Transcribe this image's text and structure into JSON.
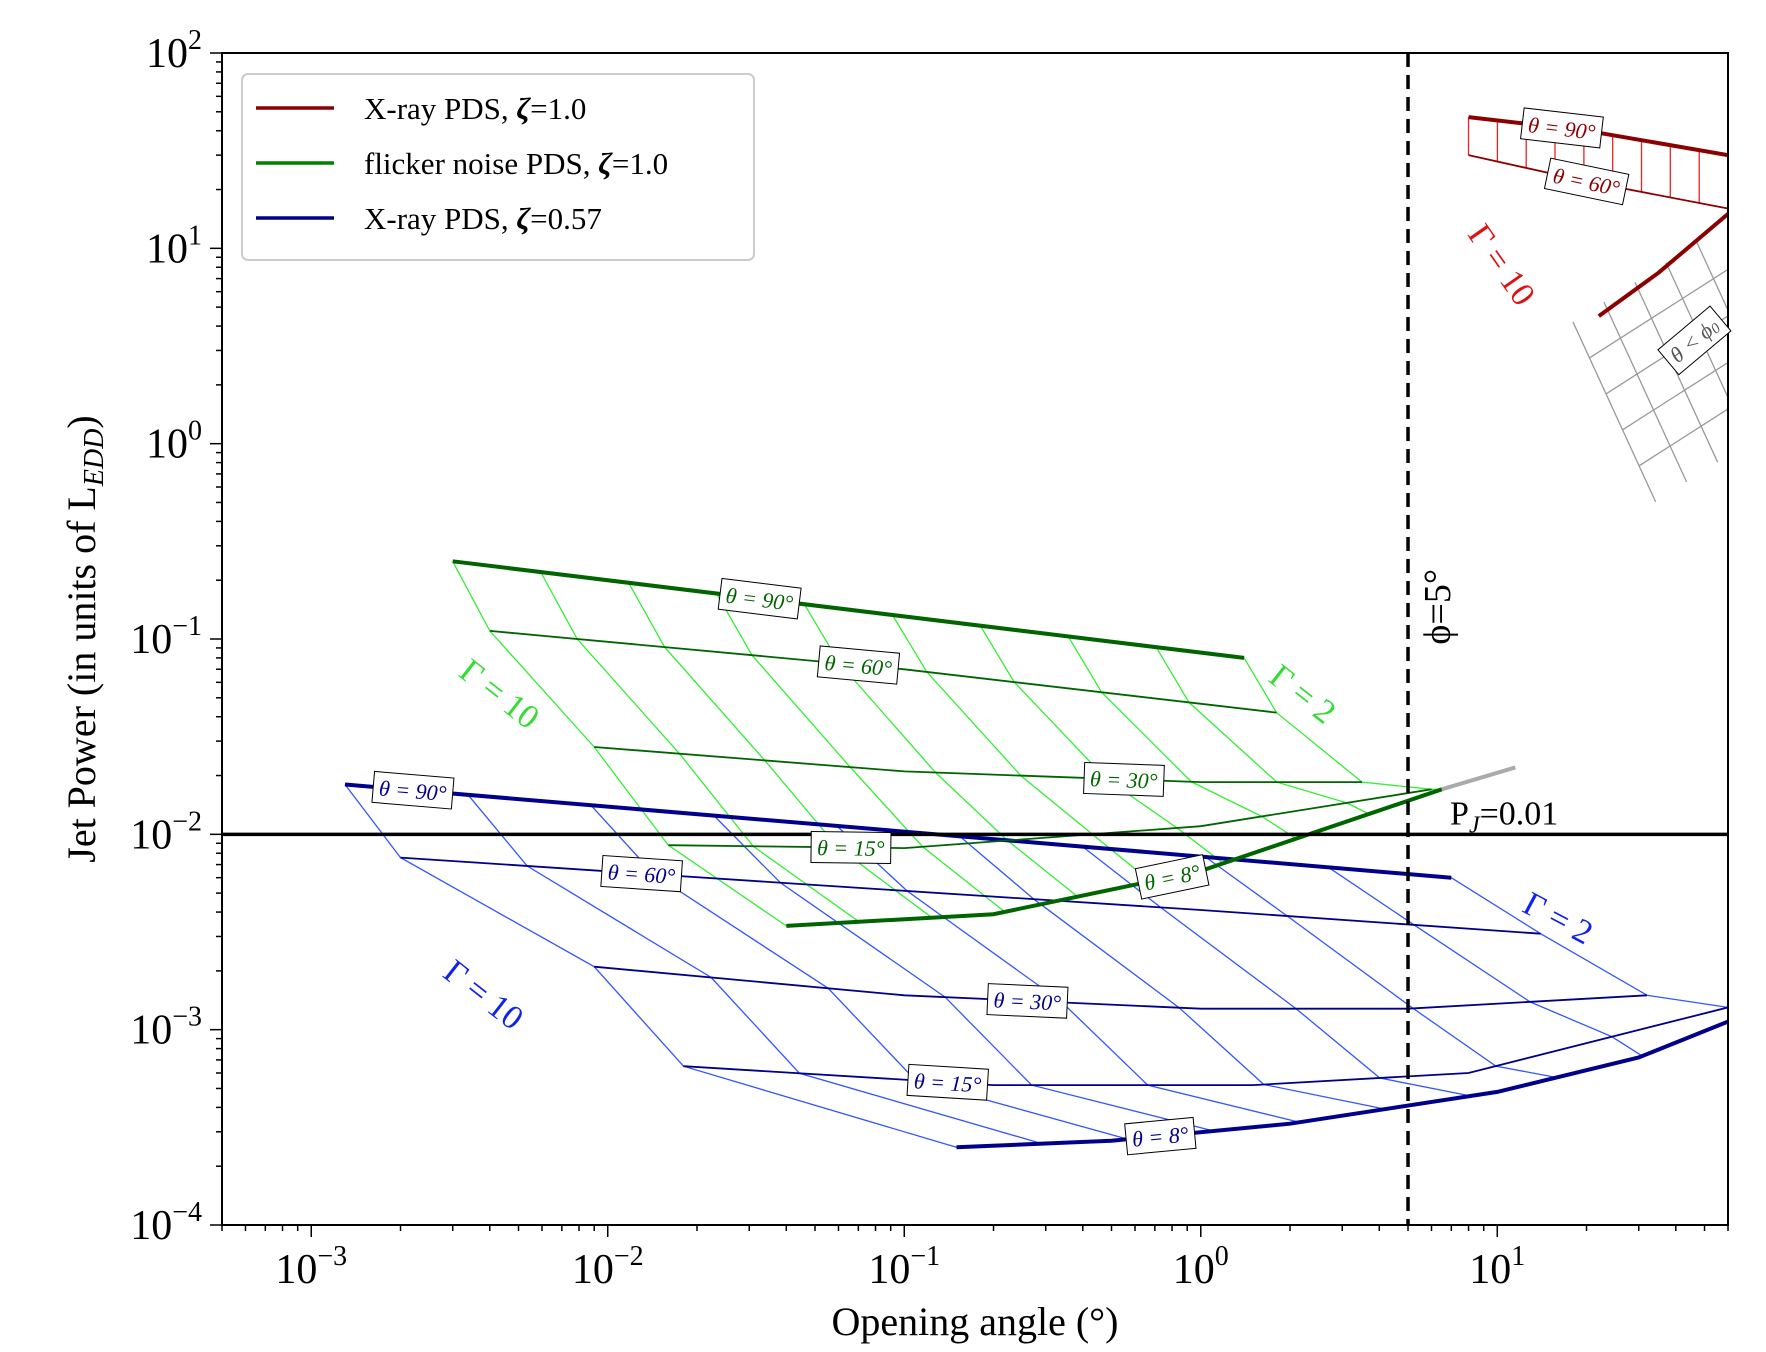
{
  "chart_data": {
    "type": "line",
    "xscale": "log",
    "yscale": "log",
    "xlim": [
      0.0005,
      60
    ],
    "ylim": [
      0.0001,
      100
    ],
    "xlabel": "Opening angle (°)",
    "ylabel": "Jet Power (in units of L",
    "ylabel_sub": "EDD",
    "ylabel_close": ")",
    "x_ticks": [
      {
        "value": 0.001,
        "base": "10",
        "exp": "−3"
      },
      {
        "value": 0.01,
        "base": "10",
        "exp": "−2"
      },
      {
        "value": 0.1,
        "base": "10",
        "exp": "−1"
      },
      {
        "value": 1,
        "base": "10",
        "exp": "0"
      },
      {
        "value": 10,
        "base": "10",
        "exp": "1"
      }
    ],
    "y_ticks": [
      {
        "value": 0.0001,
        "base": "10",
        "exp": "−4"
      },
      {
        "value": 0.001,
        "base": "10",
        "exp": "−3"
      },
      {
        "value": 0.01,
        "base": "10",
        "exp": "−2"
      },
      {
        "value": 0.1,
        "base": "10",
        "exp": "−1"
      },
      {
        "value": 1,
        "base": "10",
        "exp": "0"
      },
      {
        "value": 10,
        "base": "10",
        "exp": "1"
      },
      {
        "value": 100,
        "base": "10",
        "exp": "2"
      }
    ],
    "legend": [
      {
        "label": "X-ray PDS, ",
        "zeta": "ζ",
        "value": "=1.0",
        "color": "#8b0000"
      },
      {
        "label": "flicker noise PDS, ",
        "zeta": "ζ",
        "value": "=1.0",
        "color": "#008000"
      },
      {
        "label": "X-ray PDS, ",
        "zeta": "ζ",
        "value": "=0.57",
        "color": "#00008b"
      }
    ],
    "reference_lines": {
      "vertical": {
        "x": 5,
        "label": "ϕ=5°"
      },
      "horizontal": {
        "y": 0.01,
        "label_main": "P",
        "label_sub": "J",
        "label_value": "=0.01"
      }
    },
    "families": [
      {
        "id": "blue",
        "color_dark": "#00008b",
        "color_grid": "#3355ff",
        "theta_lines": [
          {
            "label": "θ = 90°",
            "label_at": 0.0022,
            "bold": true,
            "points": [
              [
                0.0013,
                0.018
              ],
              [
                7,
                0.006
              ]
            ]
          },
          {
            "label": "θ = 60°",
            "label_at": 0.013,
            "bold": false,
            "points": [
              [
                0.002,
                0.0076
              ],
              [
                0.05,
                0.0055
              ],
              [
                1,
                0.0041
              ],
              [
                14,
                0.0031
              ]
            ]
          },
          {
            "label": "θ = 30°",
            "label_at": 0.26,
            "bold": false,
            "points": [
              [
                0.009,
                0.0021
              ],
              [
                0.1,
                0.0015
              ],
              [
                1,
                0.00128
              ],
              [
                5,
                0.00128
              ],
              [
                32,
                0.0015
              ]
            ]
          },
          {
            "label": "θ = 15°",
            "label_at": 0.14,
            "bold": false,
            "points": [
              [
                0.018,
                0.00065
              ],
              [
                0.2,
                0.00052
              ],
              [
                1.5,
                0.00052
              ],
              [
                8,
                0.0006
              ],
              [
                60,
                0.0013
              ]
            ]
          },
          {
            "label": "θ = 8°",
            "label_at": 0.73,
            "bold": true,
            "points": [
              [
                0.15,
                0.00025
              ],
              [
                0.5,
                0.00027
              ],
              [
                2,
                0.00033
              ],
              [
                10,
                0.00048
              ],
              [
                30,
                0.00072
              ],
              [
                60,
                0.0011
              ]
            ]
          }
        ],
        "gamma_labels": [
          {
            "label": "Γ = 10",
            "x": 0.0038,
            "y": 0.0015,
            "angle": 38
          },
          {
            "label": "Γ = 2",
            "x": 16,
            "y": 0.0037,
            "angle": 28
          }
        ]
      },
      {
        "id": "green",
        "color_dark": "#006400",
        "color_grid": "#33ee33",
        "theta_lines": [
          {
            "label": "θ = 90°",
            "label_at": 0.0325,
            "bold": true,
            "points": [
              [
                0.003,
                0.25
              ],
              [
                1.4,
                0.08
              ]
            ]
          },
          {
            "label": "θ = 60°",
            "label_at": 0.07,
            "bold": false,
            "points": [
              [
                0.004,
                0.11
              ],
              [
                0.1,
                0.07
              ],
              [
                1.8,
                0.042
              ]
            ]
          },
          {
            "label": "θ = 30°",
            "label_at": 0.55,
            "bold": false,
            "points": [
              [
                0.009,
                0.028
              ],
              [
                0.1,
                0.021
              ],
              [
                1,
                0.0185
              ],
              [
                3.5,
                0.0185
              ]
            ]
          },
          {
            "label": "θ = 15°",
            "label_at": 0.066,
            "bold": false,
            "points": [
              [
                0.016,
                0.0088
              ],
              [
                0.1,
                0.0085
              ],
              [
                1,
                0.011
              ],
              [
                6,
                0.017
              ]
            ]
          },
          {
            "label": "θ = 8°",
            "label_at": 0.8,
            "bold": true,
            "points": [
              [
                0.04,
                0.0034
              ],
              [
                0.2,
                0.0039
              ],
              [
                1,
                0.0065
              ],
              [
                6.5,
                0.017
              ]
            ]
          }
        ],
        "gamma_labels": [
          {
            "label": "Γ = 10",
            "x": 0.0043,
            "y": 0.052,
            "angle": 38
          },
          {
            "label": "Γ = 2",
            "x": 2.2,
            "y": 0.052,
            "angle": 38
          }
        ],
        "grey_extension": [
          [
            6.5,
            0.017
          ],
          [
            11.5,
            0.022
          ]
        ]
      },
      {
        "id": "red",
        "color_dark": "#8b0000",
        "color_grid": "#ee2222",
        "theta_lines": [
          {
            "label": "θ = 90°",
            "label_at": 16.5,
            "bold": true,
            "points": [
              [
                8,
                47
              ],
              [
                20,
                40
              ],
              [
                60,
                30
              ]
            ]
          },
          {
            "label": "θ = 60°",
            "label_at": 20,
            "bold": false,
            "points": [
              [
                8,
                30
              ],
              [
                20,
                22
              ],
              [
                60,
                16
              ]
            ]
          }
        ],
        "gamma_labels": [
          {
            "label": "Γ = 10",
            "x": 10.3,
            "y": 8.2,
            "angle": 55
          }
        ],
        "extra_labels": [
          {
            "label": "θ < ϕ",
            "sub": "0",
            "x": 46,
            "y": 3.4,
            "angle": -40
          }
        ],
        "bold_segment": [
          [
            22,
            4.5
          ],
          [
            35,
            7.5
          ],
          [
            60,
            15
          ]
        ]
      }
    ]
  }
}
